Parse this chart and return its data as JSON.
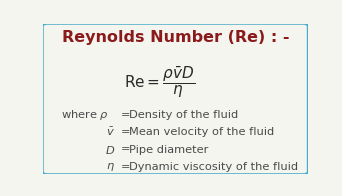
{
  "title": "Reynolds Number (Re) : -",
  "title_color": "#8B1A1A",
  "background_color": "#F5F5F0",
  "border_color": "#4AACC8",
  "text_color": "#4a4a4a",
  "formula_color": "#2a2a2a",
  "figsize": [
    3.42,
    1.96
  ],
  "dpi": 100,
  "definitions": [
    [
      "\\rho",
      "Density of the fluid"
    ],
    [
      "\\bar{v}",
      "Mean velocity of the fluid"
    ],
    [
      "D",
      "Pipe diameter"
    ],
    [
      "\\eta",
      "Dynamic viscosity of the fluid"
    ]
  ]
}
